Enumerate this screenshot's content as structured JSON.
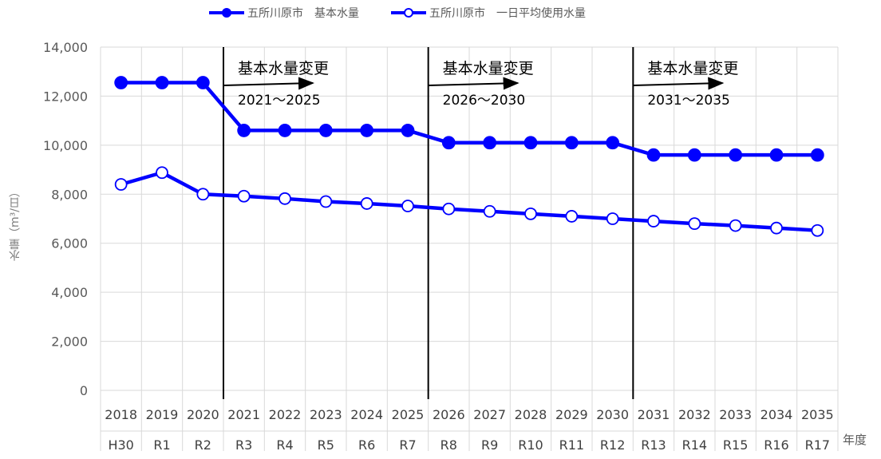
{
  "chart_data": {
    "type": "line",
    "title": "",
    "ylabel": "水量（m³/日）",
    "xlabel": "年度",
    "ylim": [
      0,
      14000
    ],
    "yticks": [
      0,
      2000,
      4000,
      6000,
      8000,
      10000,
      12000,
      14000
    ],
    "ytick_labels": [
      "0",
      "2,000",
      "4,000",
      "6,000",
      "8,000",
      "10,000",
      "12,000",
      "14,000"
    ],
    "grid": true,
    "legend_position": "top",
    "categories_year": [
      "2018",
      "2019",
      "2020",
      "2021",
      "2022",
      "2023",
      "2024",
      "2025",
      "2026",
      "2027",
      "2028",
      "2029",
      "2030",
      "2031",
      "2032",
      "2033",
      "2034",
      "2035"
    ],
    "categories_era": [
      "H30",
      "R1",
      "R2",
      "R3",
      "R4",
      "R5",
      "R6",
      "R7",
      "R8",
      "R9",
      "R10",
      "R11",
      "R12",
      "R13",
      "R14",
      "R15",
      "R16",
      "R17"
    ],
    "series": [
      {
        "name": "五所川原市　基本水量",
        "color": "#0000ff",
        "marker": "filled",
        "values": [
          12550,
          12550,
          12550,
          10600,
          10600,
          10600,
          10600,
          10600,
          10100,
          10100,
          10100,
          10100,
          10100,
          9600,
          9600,
          9600,
          9600,
          9600
        ]
      },
      {
        "name": "五所川原市　一日平均使用水量",
        "color": "#0000ff",
        "marker": "hollow",
        "values": [
          8400,
          8880,
          8000,
          7920,
          7820,
          7700,
          7620,
          7520,
          7400,
          7300,
          7200,
          7100,
          7000,
          6900,
          6800,
          6720,
          6620,
          6520
        ]
      }
    ],
    "annotations": [
      {
        "title": "基本水量変更",
        "period": "2021〜2025",
        "start_index": 3
      },
      {
        "title": "基本水量変更",
        "period": "2026〜2030",
        "start_index": 8
      },
      {
        "title": "基本水量変更",
        "period": "2031〜2035",
        "start_index": 13
      }
    ]
  },
  "colors": {
    "series": "#0000ff",
    "grid": "#d9d9d9",
    "divider": "#000000"
  }
}
